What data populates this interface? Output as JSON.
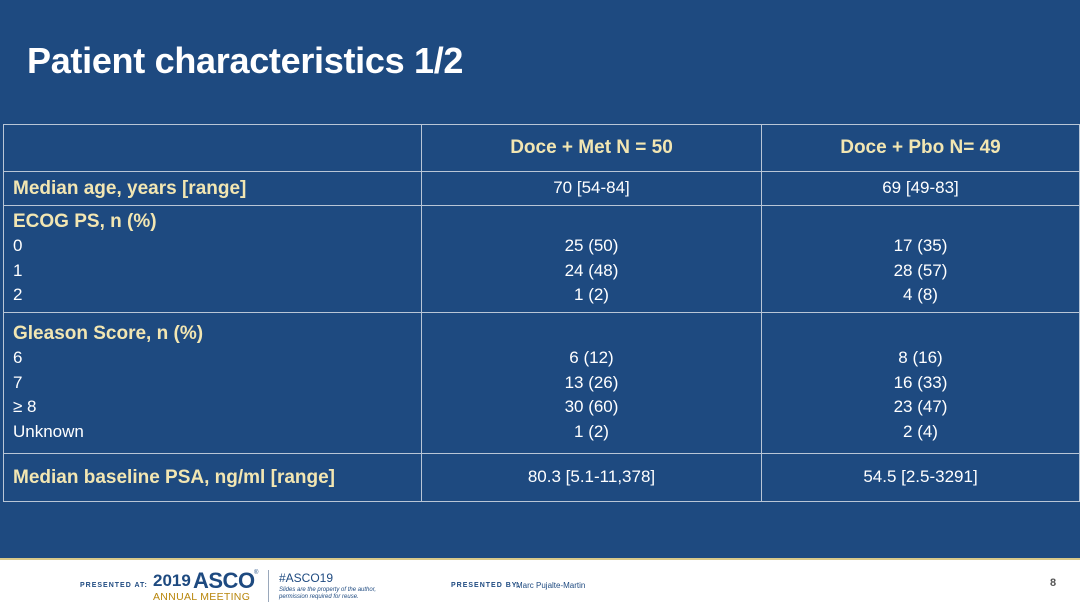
{
  "slide": {
    "title": "Patient characteristics 1/2"
  },
  "table": {
    "columns": [
      "",
      "Doce + Met N = 50",
      "Doce + Pbo N= 49"
    ],
    "median_age": {
      "label": "Median age, years [range]",
      "met": "70 [54-84]",
      "pbo": "69 [49-83]"
    },
    "ecog": {
      "label": "ECOG PS, n (%)",
      "categories": [
        "0",
        "1",
        "2"
      ],
      "met": [
        "25 (50)",
        "24 (48)",
        "1 (2)"
      ],
      "pbo": [
        "17 (35)",
        "28 (57)",
        "4 (8)"
      ]
    },
    "gleason": {
      "label": "Gleason Score, n (%)",
      "categories": [
        "6",
        "7",
        "≥ 8",
        "Unknown"
      ],
      "met": [
        "6 (12)",
        "13 (26)",
        "30 (60)",
        "1 (2)"
      ],
      "pbo": [
        "8 (16)",
        "16 (33)",
        "23 (47)",
        "2 (4)"
      ]
    },
    "psa": {
      "label": "Median baseline PSA, ng/ml [range]",
      "met": "80.3 [5.1-11,378]",
      "pbo": "54.5 [2.5-3291]"
    }
  },
  "footer": {
    "presented_at": "PRESENTED AT:",
    "year": "2019",
    "brand": "ASCO",
    "reg_mark": "®",
    "meeting": "ANNUAL MEETING",
    "hashtag": "#ASCO19",
    "disclaimer_line1": "Slides are the property of the author,",
    "disclaimer_line2": "permission required for reuse.",
    "presented_by": "PRESENTED BY:",
    "presenter": "Marc Pujalte-Martin",
    "page_number": "8"
  },
  "colors": {
    "background": "#1e4a80",
    "header_text": "#f2e6b2",
    "body_text": "#ffffff",
    "footer_accent": "#b8860b"
  }
}
